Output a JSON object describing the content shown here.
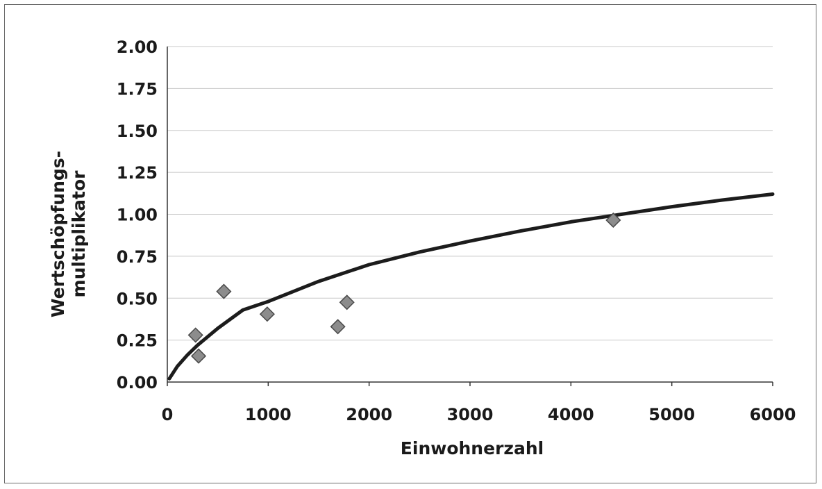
{
  "chart_data": {
    "type": "scatter",
    "xlabel": "Einwohnerzahl",
    "ylabel_lines": [
      "Wertschöpfungs-",
      "multiplikator"
    ],
    "xlim": [
      0,
      6000
    ],
    "ylim": [
      0,
      2.0
    ],
    "x_ticks": [
      "0",
      "1000",
      "2000",
      "3000",
      "4000",
      "5000",
      "6000"
    ],
    "y_ticks": [
      "0.00",
      "0.25",
      "0.50",
      "0.75",
      "1.00",
      "1.25",
      "1.50",
      "1.75",
      "2.00"
    ],
    "grid": true,
    "legend": "none",
    "points": [
      {
        "x": 280,
        "y": 0.28
      },
      {
        "x": 310,
        "y": 0.155
      },
      {
        "x": 560,
        "y": 0.54
      },
      {
        "x": 990,
        "y": 0.405
      },
      {
        "x": 1690,
        "y": 0.33
      },
      {
        "x": 1780,
        "y": 0.475
      },
      {
        "x": 4420,
        "y": 0.965
      }
    ],
    "trendline": {
      "model": "power",
      "x": [
        20,
        100,
        200,
        300,
        500,
        750,
        1000,
        1500,
        2000,
        2500,
        3000,
        3500,
        4000,
        4500,
        5000,
        5500,
        6000
      ],
      "y": [
        0.02,
        0.094,
        0.162,
        0.22,
        0.32,
        0.43,
        0.48,
        0.6,
        0.7,
        0.775,
        0.84,
        0.9,
        0.955,
        1.0,
        1.045,
        1.085,
        1.12
      ]
    },
    "colors": {
      "marker": "#8c8c8c",
      "marker_edge": "#4a4a4a",
      "line": "#1c1c1c",
      "grid": "#c8c8c8"
    }
  }
}
